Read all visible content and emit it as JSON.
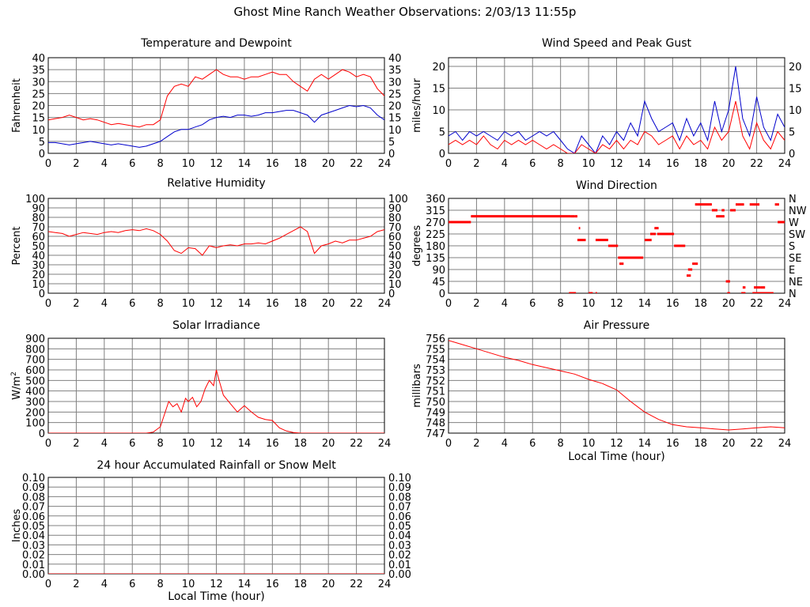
{
  "page_title": "Ghost Mine Ranch Weather Observations: 2/03/13 11:55p",
  "colors": {
    "series_red": "#ff0000",
    "series_blue": "#0000cc",
    "grid": "#808080",
    "frame": "#000000"
  },
  "x_ticks": [
    "0",
    "2",
    "4",
    "6",
    "8",
    "10",
    "12",
    "14",
    "16",
    "18",
    "20",
    "22",
    "24"
  ],
  "chart_data": [
    {
      "id": "temperature",
      "type": "line",
      "title": "Temperature and Dewpoint",
      "ylabel": "Fahrenheit",
      "xlabel": "",
      "xlim": [
        0,
        24
      ],
      "ylim": [
        0,
        40
      ],
      "yticks": [
        "0",
        "5",
        "10",
        "15",
        "20",
        "25",
        "30",
        "35",
        "40"
      ],
      "yticks_right": [
        "0",
        "5",
        "10",
        "15",
        "20",
        "25",
        "30",
        "35",
        "40"
      ],
      "grid": true,
      "series": [
        {
          "color": "#ff0000",
          "x": [
            0,
            0.5,
            1,
            1.5,
            2,
            2.5,
            3,
            3.5,
            4,
            4.5,
            5,
            5.5,
            6,
            6.5,
            7,
            7.5,
            8,
            8.5,
            9,
            9.5,
            10,
            10.5,
            11,
            11.5,
            12,
            12.5,
            13,
            13.5,
            14,
            14.5,
            15,
            15.5,
            16,
            16.5,
            17,
            17.5,
            18,
            18.5,
            19,
            19.5,
            20,
            20.5,
            21,
            21.5,
            22,
            22.5,
            23,
            23.5,
            24
          ],
          "y": [
            14,
            14.5,
            15,
            16,
            15,
            14,
            14.5,
            14,
            13,
            12,
            12.5,
            12,
            11.5,
            11,
            12,
            12,
            14,
            24,
            28,
            29,
            28,
            32,
            31,
            33,
            35,
            33,
            32,
            32,
            31,
            32,
            32,
            33,
            34,
            33,
            33,
            30,
            28,
            26,
            31,
            33,
            31,
            33,
            35,
            34,
            32,
            33,
            32,
            27,
            24
          ]
        },
        {
          "color": "#0000cc",
          "x": [
            0,
            0.5,
            1,
            1.5,
            2,
            2.5,
            3,
            3.5,
            4,
            4.5,
            5,
            5.5,
            6,
            6.5,
            7,
            7.5,
            8,
            8.5,
            9,
            9.5,
            10,
            10.5,
            11,
            11.5,
            12,
            12.5,
            13,
            13.5,
            14,
            14.5,
            15,
            15.5,
            16,
            16.5,
            17,
            17.5,
            18,
            18.5,
            19,
            19.5,
            20,
            20.5,
            21,
            21.5,
            22,
            22.5,
            23,
            23.5,
            24
          ],
          "y": [
            4.5,
            4.5,
            4,
            3.5,
            4,
            4.5,
            5,
            4.5,
            4,
            3.5,
            4,
            3.5,
            3,
            2.5,
            3,
            4,
            5,
            7,
            9,
            10,
            10,
            11,
            12,
            14,
            15,
            15.5,
            15,
            16,
            16,
            15.5,
            16,
            17,
            17,
            17.5,
            18,
            18,
            17,
            16,
            13,
            16,
            17,
            18,
            19,
            20,
            19.5,
            20,
            19,
            16,
            14
          ]
        }
      ]
    },
    {
      "id": "wind_speed",
      "type": "line",
      "title": "Wind Speed and Peak Gust",
      "ylabel": "miles/hour",
      "xlabel": "",
      "xlim": [
        0,
        24
      ],
      "ylim": [
        0,
        22
      ],
      "yticks": [
        "0",
        "5",
        "10",
        "15",
        "20"
      ],
      "ytick_values": [
        0,
        5,
        10,
        15,
        20
      ],
      "yticks_right": [
        "0",
        "5",
        "10",
        "15",
        "20"
      ],
      "grid": true,
      "series": [
        {
          "color": "#0000cc",
          "x": [
            0,
            0.5,
            1,
            1.5,
            2,
            2.5,
            3,
            3.5,
            4,
            4.5,
            5,
            5.5,
            6,
            6.5,
            7,
            7.5,
            8,
            8.5,
            9,
            9.5,
            10,
            10.5,
            11,
            11.5,
            12,
            12.5,
            13,
            13.5,
            14,
            14.5,
            15,
            15.5,
            16,
            16.5,
            17,
            17.5,
            18,
            18.5,
            19,
            19.5,
            20,
            20.5,
            21,
            21.5,
            22,
            22.5,
            23,
            23.5,
            24
          ],
          "y": [
            4,
            5,
            3,
            5,
            4,
            5,
            4,
            3,
            5,
            4,
            5,
            3,
            4,
            5,
            4,
            5,
            3,
            1,
            0,
            4,
            2,
            0,
            4,
            2,
            5,
            3,
            7,
            4,
            12,
            8,
            5,
            6,
            7,
            3,
            8,
            4,
            7,
            3,
            12,
            5,
            10,
            20,
            8,
            4,
            13,
            6,
            3,
            9,
            6
          ]
        },
        {
          "color": "#ff0000",
          "x": [
            0,
            0.5,
            1,
            1.5,
            2,
            2.5,
            3,
            3.5,
            4,
            4.5,
            5,
            5.5,
            6,
            6.5,
            7,
            7.5,
            8,
            8.5,
            9,
            9.5,
            10,
            10.5,
            11,
            11.5,
            12,
            12.5,
            13,
            13.5,
            14,
            14.5,
            15,
            15.5,
            16,
            16.5,
            17,
            17.5,
            18,
            18.5,
            19,
            19.5,
            20,
            20.5,
            21,
            21.5,
            22,
            22.5,
            23,
            23.5,
            24
          ],
          "y": [
            2,
            3,
            2,
            3,
            2,
            4,
            2,
            1,
            3,
            2,
            3,
            2,
            3,
            2,
            1,
            2,
            1,
            0,
            0,
            2,
            1,
            0,
            2,
            1,
            3,
            1,
            3,
            2,
            5,
            4,
            2,
            3,
            4,
            1,
            4,
            2,
            3,
            1,
            6,
            3,
            5,
            12,
            4,
            1,
            7,
            3,
            1,
            5,
            3
          ]
        }
      ]
    },
    {
      "id": "humidity",
      "type": "line",
      "title": "Relative Humidity",
      "ylabel": "Percent",
      "xlabel": "",
      "xlim": [
        0,
        24
      ],
      "ylim": [
        0,
        100
      ],
      "yticks": [
        "0",
        "10",
        "20",
        "30",
        "40",
        "50",
        "60",
        "70",
        "80",
        "90",
        "100"
      ],
      "yticks_right": [
        "0",
        "10",
        "20",
        "30",
        "40",
        "50",
        "60",
        "70",
        "80",
        "90",
        "100"
      ],
      "grid": true,
      "series": [
        {
          "color": "#ff0000",
          "x": [
            0,
            0.5,
            1,
            1.5,
            2,
            2.5,
            3,
            3.5,
            4,
            4.5,
            5,
            5.5,
            6,
            6.5,
            7,
            7.5,
            8,
            8.5,
            9,
            9.5,
            10,
            10.5,
            11,
            11.5,
            12,
            12.5,
            13,
            13.5,
            14,
            14.5,
            15,
            15.5,
            16,
            16.5,
            17,
            17.5,
            18,
            18.5,
            19,
            19.5,
            20,
            20.5,
            21,
            21.5,
            22,
            22.5,
            23,
            23.5,
            24
          ],
          "y": [
            65,
            64,
            63,
            60,
            62,
            64,
            63,
            62,
            64,
            65,
            64,
            66,
            67,
            66,
            68,
            66,
            62,
            55,
            45,
            42,
            48,
            47,
            40,
            50,
            48,
            50,
            51,
            50,
            52,
            52,
            53,
            52,
            55,
            58,
            62,
            66,
            70,
            65,
            42,
            50,
            52,
            55,
            53,
            56,
            56,
            58,
            60,
            65,
            67
          ]
        }
      ]
    },
    {
      "id": "wind_direction",
      "type": "scatter",
      "title": "Wind Direction",
      "ylabel": "degrees",
      "xlabel": "",
      "xlim": [
        0,
        24
      ],
      "ylim": [
        0,
        360
      ],
      "yticks": [
        "0",
        "45",
        "90",
        "135",
        "180",
        "225",
        "270",
        "315",
        "360"
      ],
      "yticks_right": [
        "N",
        "NE",
        "E",
        "SE",
        "S",
        "SW",
        "W",
        "NW",
        "N"
      ],
      "grid": true,
      "series": [
        {
          "color": "#ff0000",
          "segments": [
            [
              0,
              1.6,
              270
            ],
            [
              1.6,
              8.7,
              292
            ],
            [
              8.7,
              9.0,
              292
            ],
            [
              9.0,
              9.2,
              292
            ],
            [
              8.6,
              9.1,
              0
            ],
            [
              9.2,
              9.8,
              202
            ],
            [
              9.3,
              9.4,
              247
            ],
            [
              10.0,
              10.3,
              0
            ],
            [
              10.5,
              10.6,
              0
            ],
            [
              10.5,
              11.4,
              202
            ],
            [
              11.4,
              12.1,
              180
            ],
            [
              12.1,
              13.9,
              135
            ],
            [
              12.2,
              12.5,
              112
            ],
            [
              14.0,
              14.5,
              202
            ],
            [
              14.4,
              14.8,
              225
            ],
            [
              14.7,
              15.0,
              247
            ],
            [
              14.9,
              16.1,
              225
            ],
            [
              16.1,
              16.9,
              180
            ],
            [
              17.0,
              17.3,
              67
            ],
            [
              17.1,
              17.4,
              90
            ],
            [
              17.4,
              17.8,
              112
            ],
            [
              17.6,
              18.8,
              337
            ],
            [
              18.8,
              19.2,
              315
            ],
            [
              19.1,
              19.7,
              292
            ],
            [
              19.5,
              19.7,
              315
            ],
            [
              19.8,
              20.1,
              45
            ],
            [
              19.9,
              20.1,
              0
            ],
            [
              20.1,
              20.5,
              315
            ],
            [
              20.5,
              21.1,
              337
            ],
            [
              21.0,
              21.2,
              22
            ],
            [
              20.9,
              21.2,
              0
            ],
            [
              21.5,
              22.2,
              337
            ],
            [
              21.7,
              22.0,
              0
            ],
            [
              21.8,
              22.3,
              22
            ],
            [
              22.3,
              22.6,
              22
            ],
            [
              21.9,
              23.2,
              0
            ],
            [
              23.3,
              23.6,
              337
            ],
            [
              23.5,
              24,
              270
            ]
          ]
        }
      ]
    },
    {
      "id": "solar",
      "type": "line",
      "title": "Solar Irradiance",
      "ylabel": "W/m2",
      "xlabel": "",
      "xlim": [
        0,
        24
      ],
      "ylim": [
        0,
        900
      ],
      "yticks": [
        "0",
        "100",
        "200",
        "300",
        "400",
        "500",
        "600",
        "700",
        "800",
        "900"
      ],
      "grid": true,
      "series": [
        {
          "color": "#ff0000",
          "x": [
            0,
            7,
            7.5,
            8,
            8.3,
            8.6,
            8.9,
            9.2,
            9.5,
            9.8,
            10,
            10.3,
            10.6,
            10.9,
            11.2,
            11.5,
            11.8,
            12,
            12.2,
            12.5,
            13,
            13.5,
            14,
            14.5,
            15,
            15.5,
            16,
            16.5,
            17,
            17.5,
            18,
            24
          ],
          "y": [
            0,
            0,
            10,
            60,
            180,
            300,
            250,
            280,
            200,
            330,
            300,
            340,
            250,
            300,
            420,
            500,
            450,
            600,
            500,
            360,
            280,
            200,
            260,
            200,
            150,
            130,
            120,
            50,
            20,
            5,
            0,
            0
          ]
        }
      ]
    },
    {
      "id": "pressure",
      "type": "line",
      "title": "Air Pressure",
      "ylabel": "millibars",
      "xlabel": "Local Time (hour)",
      "xlim": [
        0,
        24
      ],
      "ylim": [
        747,
        756
      ],
      "yticks": [
        "747",
        "748",
        "749",
        "750",
        "751",
        "752",
        "753",
        "754",
        "755",
        "756"
      ],
      "grid": true,
      "series": [
        {
          "color": "#ff0000",
          "x": [
            0,
            1,
            2,
            3,
            4,
            5,
            6,
            7,
            8,
            9,
            10,
            11,
            12,
            13,
            14,
            15,
            16,
            17,
            18,
            19,
            20,
            21,
            22,
            23,
            24
          ],
          "y": [
            755.8,
            755.4,
            755.0,
            754.6,
            754.2,
            753.9,
            753.5,
            753.2,
            752.9,
            752.6,
            752.1,
            751.7,
            751.1,
            750.0,
            749.0,
            748.3,
            747.8,
            747.6,
            747.5,
            747.4,
            747.3,
            747.4,
            747.5,
            747.6,
            747.5
          ]
        }
      ]
    },
    {
      "id": "rainfall",
      "type": "line",
      "title": "24 hour Accumulated Rainfall or Snow Melt",
      "ylabel": "Inches",
      "xlabel": "Local Time (hour)",
      "xlim": [
        0,
        24
      ],
      "ylim": [
        0,
        0.1
      ],
      "yticks": [
        "0.00",
        "0.01",
        "0.02",
        "0.03",
        "0.04",
        "0.05",
        "0.06",
        "0.07",
        "0.08",
        "0.09",
        "0.10"
      ],
      "yticks_right": [
        "0.00",
        "0.01",
        "0.02",
        "0.03",
        "0.04",
        "0.05",
        "0.06",
        "0.07",
        "0.08",
        "0.09",
        "0.10"
      ],
      "grid": true,
      "series": [
        {
          "color": "#ff0000",
          "x": [
            0,
            24
          ],
          "y": [
            0,
            0
          ]
        }
      ]
    }
  ]
}
